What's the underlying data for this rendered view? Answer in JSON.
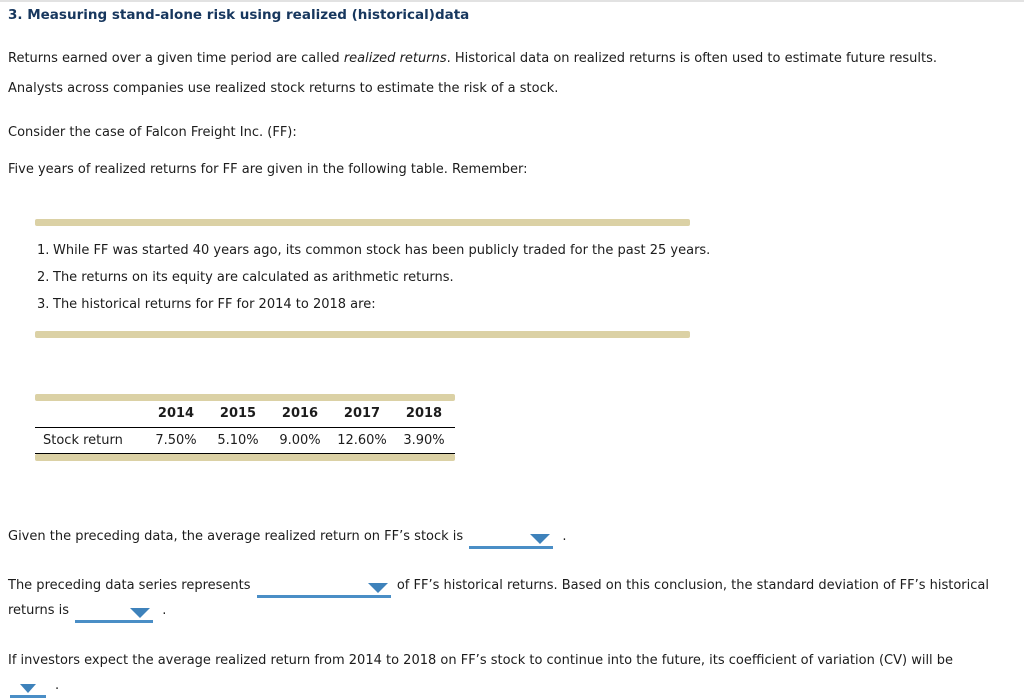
{
  "page": {
    "title": "3. Measuring stand-alone risk using realized (historical)data"
  },
  "intro": {
    "p1_before": "Returns earned over a given time period are called ",
    "p1_italic": "realized returns",
    "p1_after": ". Historical data on realized returns is often used to estimate future results.",
    "p2": "Analysts across companies use realized stock returns to estimate the risk of a stock.",
    "p3": "Consider the case of Falcon Freight Inc. (FF):",
    "p4": "Five years of realized returns for FF are given in the following table. Remember:"
  },
  "remember_list": {
    "items": [
      {
        "num": "1.",
        "text": "While FF was started 40 years ago, its common stock has been publicly traded for the past 25 years."
      },
      {
        "num": "2.",
        "text": "The returns on its equity are calculated as arithmetic returns."
      },
      {
        "num": "3.",
        "text": "The historical returns for FF for 2014 to 2018 are:"
      }
    ]
  },
  "returns_table": {
    "row_label": "Stock return",
    "years": [
      "2014",
      "2015",
      "2016",
      "2017",
      "2018"
    ],
    "values": [
      "7.50%",
      "5.10%",
      "9.00%",
      "12.60%",
      "3.90%"
    ]
  },
  "questions": {
    "q1_before": "Given the preceding data, the average realized return on FF’s stock is",
    "q1_after": ".",
    "q2_before": "The preceding data series represents",
    "q2_mid": "of FF’s historical returns. Based on this conclusion, the standard deviation of FF’s historical",
    "q2_line2_before": "returns is",
    "q2_after": ".",
    "q3_text": "If investors expect the average realized return from 2014 to 2018 on FF’s stock to continue into the future, its coefficient of variation (CV) will be",
    "q3_after": "."
  },
  "colors": {
    "dropdown_underline": "#4a8ec6",
    "dropdown_arrow": "#3e82bb",
    "title_navy": "#17375e",
    "tan_bar": "#dbd1a5",
    "top_border": "#e2e2e2"
  }
}
